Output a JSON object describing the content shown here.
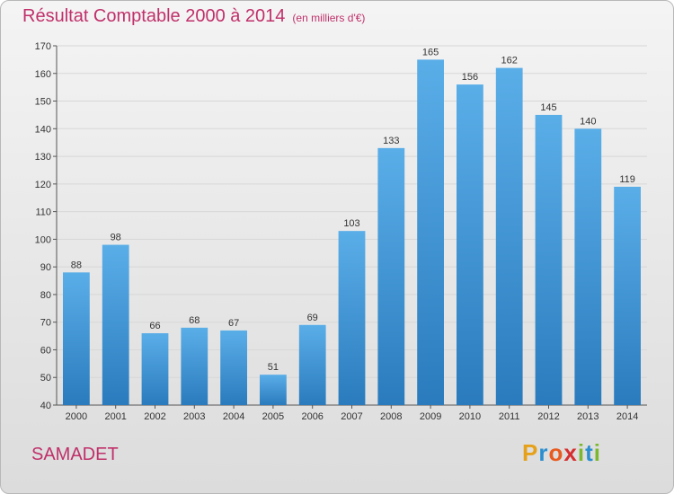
{
  "title": "Résultat Comptable 2000 à 2014",
  "unit": "(en milliers d'€)",
  "commune": "SAMADET",
  "logo": {
    "letters": [
      "P",
      "r",
      "o",
      "x",
      "i",
      "t",
      "i"
    ]
  },
  "colors": {
    "title": "#c0306a",
    "bar_light": "#5aaee8",
    "bar_dark": "#2a7bbd",
    "grid": "#d7d7d7"
  },
  "chart_data": {
    "type": "bar",
    "categories": [
      "2000",
      "2001",
      "2002",
      "2003",
      "2004",
      "2005",
      "2006",
      "2007",
      "2008",
      "2009",
      "2010",
      "2011",
      "2012",
      "2013",
      "2014"
    ],
    "values": [
      88,
      98,
      66,
      68,
      67,
      51,
      69,
      103,
      133,
      165,
      156,
      162,
      145,
      140,
      119
    ],
    "title": "Résultat Comptable 2000 à 2014",
    "xlabel": "",
    "ylabel": "",
    "ylim": [
      40,
      170
    ],
    "yticks": [
      40,
      50,
      60,
      70,
      80,
      90,
      100,
      110,
      120,
      130,
      140,
      150,
      160,
      170
    ],
    "grid": true,
    "legend": "none"
  }
}
